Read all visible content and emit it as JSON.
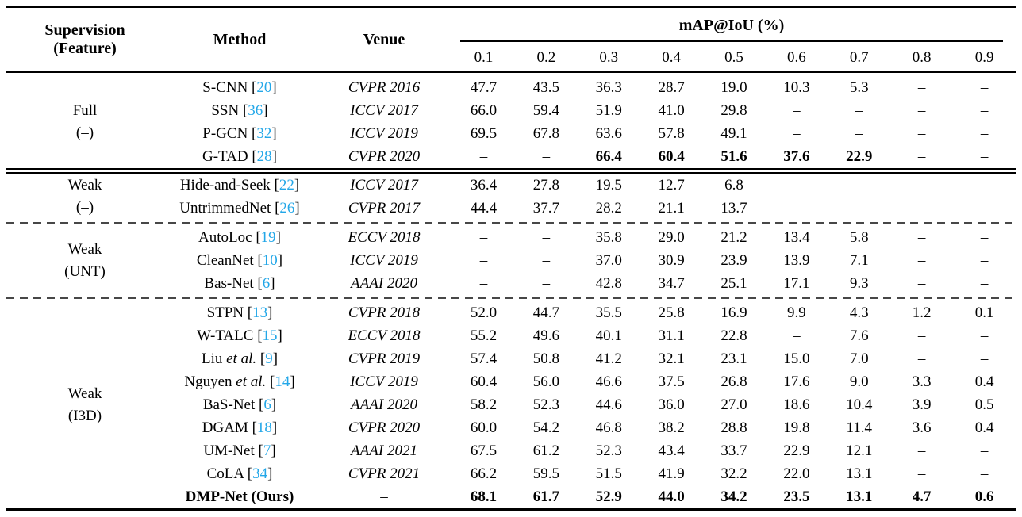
{
  "table": {
    "headers": {
      "supervision_line1": "Supervision",
      "supervision_line2": "(Feature)",
      "method": "Method",
      "venue": "Venue",
      "map_group": "mAP@IoU (%)",
      "iou_thresholds": [
        "0.1",
        "0.2",
        "0.3",
        "0.4",
        "0.5",
        "0.6",
        "0.7",
        "0.8",
        "0.9"
      ]
    },
    "etal_text": "et al.",
    "cite_open": "[",
    "cite_close": "]",
    "citation_color": "#23A7E8",
    "groups": [
      {
        "supervision_line1": "Full",
        "supervision_line2": "(–)",
        "separator_before": "none",
        "rows": [
          {
            "method": "S-CNN",
            "cite": "20",
            "venue": "CVPR 2016",
            "values": [
              "47.7",
              "43.5",
              "36.3",
              "28.7",
              "19.0",
              "10.3",
              "5.3",
              "–",
              "–"
            ]
          },
          {
            "method": "SSN",
            "cite": "36",
            "venue": "ICCV 2017",
            "values": [
              "66.0",
              "59.4",
              "51.9",
              "41.0",
              "29.8",
              "–",
              "–",
              "–",
              "–"
            ]
          },
          {
            "method": "P-GCN",
            "cite": "32",
            "venue": "ICCV 2019",
            "values": [
              "69.5",
              "67.8",
              "63.6",
              "57.8",
              "49.1",
              "–",
              "–",
              "–",
              "–"
            ]
          },
          {
            "method": "G-TAD",
            "cite": "28",
            "venue": "CVPR 2020",
            "bold_value_indices": [
              2,
              3,
              4,
              5,
              6
            ],
            "values": [
              "–",
              "–",
              "66.4",
              "60.4",
              "51.6",
              "37.6",
              "22.9",
              "–",
              "–"
            ]
          }
        ]
      },
      {
        "supervision_line1": "Weak",
        "supervision_line2": "(–)",
        "separator_before": "double",
        "rows": [
          {
            "method": "Hide-and-Seek",
            "cite": "22",
            "venue": "ICCV 2017",
            "values": [
              "36.4",
              "27.8",
              "19.5",
              "12.7",
              "6.8",
              "–",
              "–",
              "–",
              "–"
            ]
          },
          {
            "method": "UntrimmedNet",
            "cite": "26",
            "venue": "CVPR 2017",
            "values": [
              "44.4",
              "37.7",
              "28.2",
              "21.1",
              "13.7",
              "–",
              "–",
              "–",
              "–"
            ]
          }
        ]
      },
      {
        "supervision_line1": "Weak",
        "supervision_line2": "(UNT)",
        "separator_before": "dashed",
        "rows": [
          {
            "method": "AutoLoc",
            "cite": "19",
            "venue": "ECCV 2018",
            "values": [
              "–",
              "–",
              "35.8",
              "29.0",
              "21.2",
              "13.4",
              "5.8",
              "–",
              "–"
            ]
          },
          {
            "method": "CleanNet",
            "cite": "10",
            "venue": "ICCV 2019",
            "values": [
              "–",
              "–",
              "37.0",
              "30.9",
              "23.9",
              "13.9",
              "7.1",
              "–",
              "–"
            ]
          },
          {
            "method": "Bas-Net",
            "cite": "6",
            "venue": "AAAI 2020",
            "values": [
              "–",
              "–",
              "42.8",
              "34.7",
              "25.1",
              "17.1",
              "9.3",
              "–",
              "–"
            ]
          }
        ]
      },
      {
        "supervision_line1": "Weak",
        "supervision_line2": "(I3D)",
        "separator_before": "dashed",
        "rows": [
          {
            "method": "STPN",
            "cite": "13",
            "venue": "CVPR 2018",
            "values": [
              "52.0",
              "44.7",
              "35.5",
              "25.8",
              "16.9",
              "9.9",
              "4.3",
              "1.2",
              "0.1"
            ]
          },
          {
            "method": "W-TALC",
            "cite": "15",
            "venue": "ECCV 2018",
            "values": [
              "55.2",
              "49.6",
              "40.1",
              "31.1",
              "22.8",
              "–",
              "7.6",
              "–",
              "–"
            ]
          },
          {
            "method": "Liu",
            "etal": true,
            "cite": "9",
            "venue": "CVPR 2019",
            "values": [
              "57.4",
              "50.8",
              "41.2",
              "32.1",
              "23.1",
              "15.0",
              "7.0",
              "–",
              "–"
            ]
          },
          {
            "method": "Nguyen",
            "etal": true,
            "cite": "14",
            "venue": "ICCV 2019",
            "values": [
              "60.4",
              "56.0",
              "46.6",
              "37.5",
              "26.8",
              "17.6",
              "9.0",
              "3.3",
              "0.4"
            ]
          },
          {
            "method": "BaS-Net",
            "cite": "6",
            "venue": "AAAI 2020",
            "values": [
              "58.2",
              "52.3",
              "44.6",
              "36.0",
              "27.0",
              "18.6",
              "10.4",
              "3.9",
              "0.5"
            ]
          },
          {
            "method": "DGAM",
            "cite": "18",
            "venue": "CVPR 2020",
            "values": [
              "60.0",
              "54.2",
              "46.8",
              "38.2",
              "28.8",
              "19.8",
              "11.4",
              "3.6",
              "0.4"
            ]
          },
          {
            "method": "UM-Net",
            "cite": "7",
            "venue": "AAAI 2021",
            "values": [
              "67.5",
              "61.2",
              "52.3",
              "43.4",
              "33.7",
              "22.9",
              "12.1",
              "–",
              "–"
            ]
          },
          {
            "method": "CoLA",
            "cite": "34",
            "venue": "CVPR 2021",
            "values": [
              "66.2",
              "59.5",
              "51.5",
              "41.9",
              "32.2",
              "22.0",
              "13.1",
              "–",
              "–"
            ]
          },
          {
            "method": "DMP-Net (Ours)",
            "venue": "–",
            "bold_method": true,
            "bold_all_values": true,
            "values": [
              "68.1",
              "61.7",
              "52.9",
              "44.0",
              "34.2",
              "23.5",
              "13.1",
              "4.7",
              "0.6"
            ]
          }
        ]
      }
    ]
  }
}
